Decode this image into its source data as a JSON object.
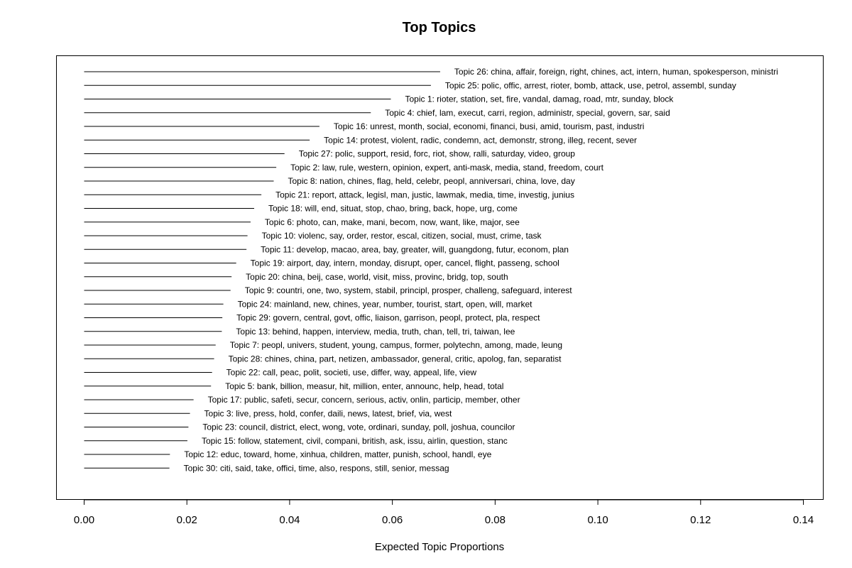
{
  "chart_data": {
    "type": "bar",
    "title": "Top Topics",
    "xlabel": "Expected Topic Proportions",
    "ylabel": "",
    "xlim": [
      0.0,
      0.14
    ],
    "xticks": [
      "0.00",
      "0.02",
      "0.04",
      "0.06",
      "0.08",
      "0.10",
      "0.12",
      "0.14"
    ],
    "grid": false,
    "categories": [
      "Topic 26: china, affair, foreign, right, chines, act, intern, human, spokesperson, ministri",
      "Topic 25: polic, offic, arrest, rioter, bomb, attack, use, petrol, assembl, sunday",
      "Topic 1: rioter, station, set, fire, vandal, damag, road, mtr, sunday, block",
      "Topic 4: chief, lam, execut, carri, region, administr, special, govern, sar, said",
      "Topic 16: unrest, month, social, economi, financi, busi, amid, tourism, past, industri",
      "Topic 14: protest, violent, radic, condemn, act, demonstr, strong, illeg, recent, sever",
      "Topic 27: polic, support, resid, forc, riot, show, ralli, saturday, video, group",
      "Topic 2: law, rule, western, opinion, expert, anti-mask, media, stand, freedom, court",
      "Topic 8: nation, chines, flag, held, celebr, peopl, anniversari, china, love, day",
      "Topic 21: report, attack, legisl, man, justic, lawmak, media, time, investig, junius",
      "Topic 18: will, end, situat, stop, chao, bring, back, hope, urg, come",
      "Topic 6: photo, can, make, mani, becom, now, want, like, major, see",
      "Topic 10: violenc, say, order, restor, escal, citizen, social, must, crime, task",
      "Topic 11: develop, macao, area, bay, greater, will, guangdong, futur, econom, plan",
      "Topic 19: airport, day, intern, monday, disrupt, oper, cancel, flight, passeng, school",
      "Topic 20: china, beij, case, world, visit, miss, provinc, bridg, top, south",
      "Topic 9: countri, one, two, system, stabil, principl, prosper, challeng, safeguard, interest",
      "Topic 24: mainland, new, chines, year, number, tourist, start, open, will, market",
      "Topic 29: govern, central, govt, offic, liaison, garrison, peopl, protect, pla, respect",
      "Topic 13: behind, happen, interview, media, truth, chan, tell, tri, taiwan, lee",
      "Topic 7: peopl, univers, student, young, campus, former, polytechn, among, made, leung",
      "Topic 28: chines, china, part, netizen, ambassador, general, critic, apolog, fan, separatist",
      "Topic 22: call, peac, polit, societi, use, differ, way, appeal, life, view",
      "Topic 5: bank, billion, measur, hit, million, enter, announc, help, head, total",
      "Topic 17: public, safeti, secur, concern, serious, activ, onlin, particip, member, other",
      "Topic 3: live, press, hold, confer, daili, news, latest, brief, via, west",
      "Topic 23: council, district, elect, wong, vote, ordinari, sunday, poll, joshua, councilor",
      "Topic 15: follow, statement, civil, compani, british, ask, issu, airlin, question, stanc",
      "Topic 12: educ, toward, home, xinhua, children, matter, punish, school, handl, eye",
      "Topic 30: citi, said, take, offici, time, also, respons, still, senior, messag"
    ],
    "values": [
      0.0693,
      0.0675,
      0.0597,
      0.0558,
      0.0458,
      0.0439,
      0.039,
      0.0374,
      0.0369,
      0.0345,
      0.0331,
      0.0324,
      0.0318,
      0.0316,
      0.0296,
      0.0287,
      0.0285,
      0.0271,
      0.0269,
      0.0268,
      0.0256,
      0.0253,
      0.0249,
      0.0247,
      0.0213,
      0.0206,
      0.0203,
      0.0201,
      0.0167,
      0.0166
    ]
  }
}
